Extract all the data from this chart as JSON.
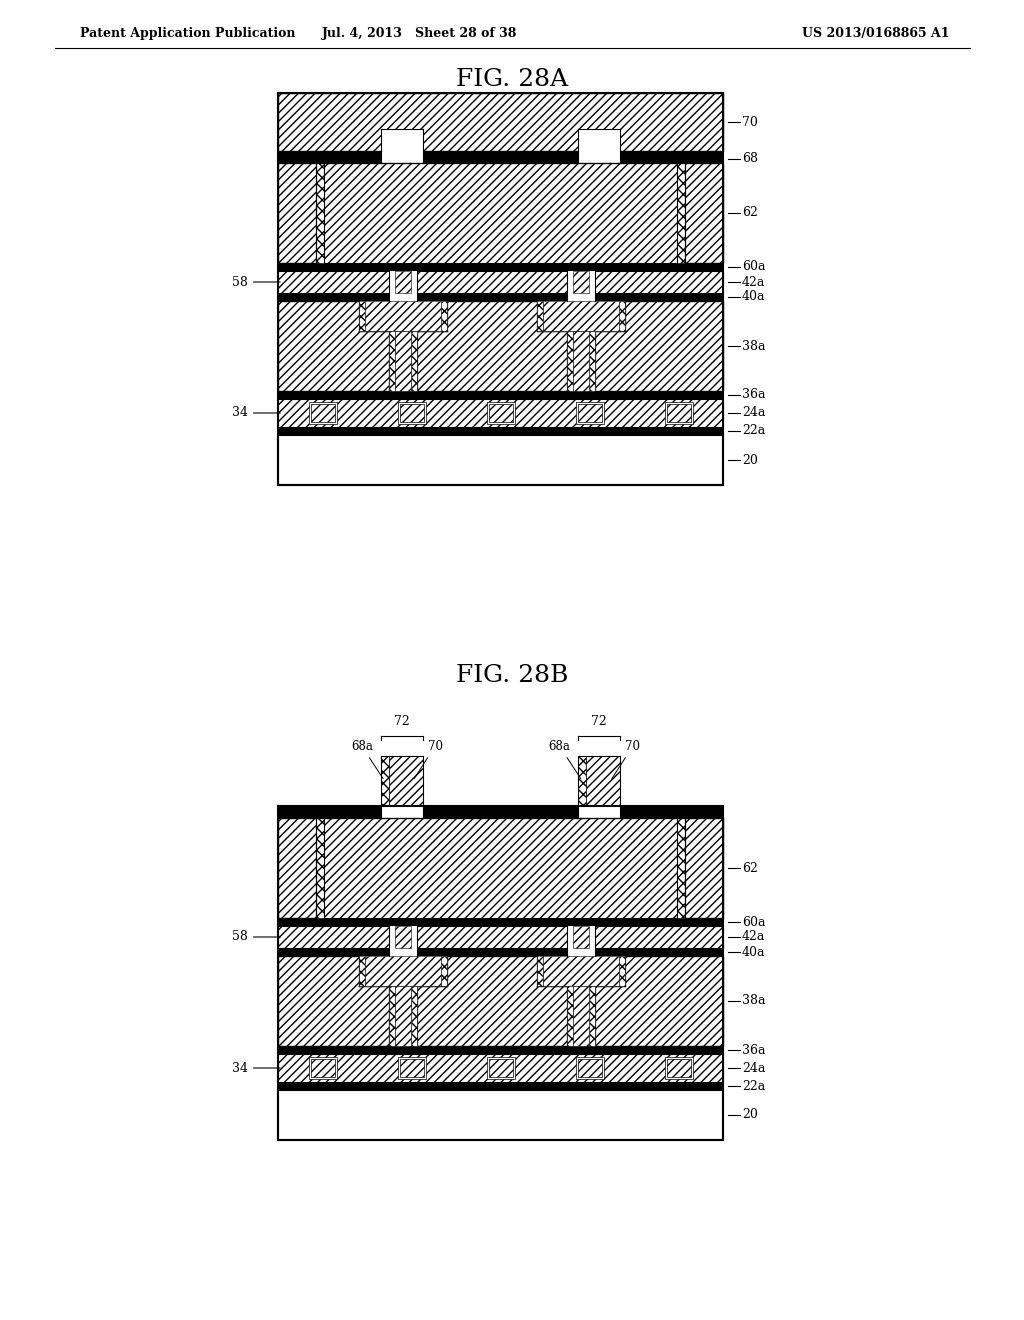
{
  "title": "FIG. 28A",
  "title2": "FIG. 28B",
  "header_left": "Patent Application Publication",
  "header_mid": "Jul. 4, 2013   Sheet 28 of 38",
  "header_right": "US 2013/0168865 A1",
  "bg_color": "#ffffff"
}
